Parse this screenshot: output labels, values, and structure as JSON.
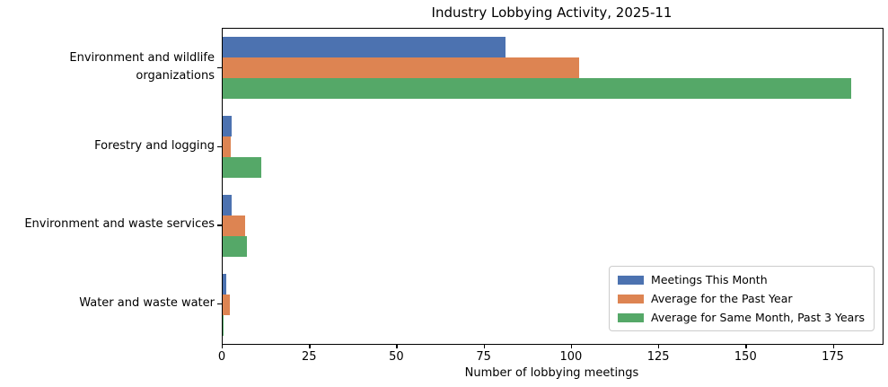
{
  "chart_data": {
    "type": "bar",
    "orientation": "horizontal",
    "title": "Industry Lobbying Activity, 2025-11",
    "xlabel": "Number of lobbying meetings",
    "categories": [
      "Environment and wildlife organizations",
      "Forestry and logging",
      "Environment and waste services",
      "Water and waste water"
    ],
    "category_label_lines": [
      [
        "Environment and wildlife",
        "organizations"
      ],
      [
        "Forestry and logging"
      ],
      [
        "Environment and waste services"
      ],
      [
        "Water and waste water"
      ]
    ],
    "series": [
      {
        "name": "Meetings This Month",
        "color": "#4C72B0",
        "values": [
          81,
          2.5,
          2.5,
          1
        ]
      },
      {
        "name": "Average for the Past Year",
        "color": "#DD8452",
        "values": [
          102,
          2.3,
          6.5,
          2
        ]
      },
      {
        "name": "Average for Same Month, Past 3 Years",
        "color": "#55A868",
        "values": [
          180,
          11,
          7,
          0.3
        ]
      }
    ],
    "xlim": [
      0,
      189
    ],
    "xticks": [
      0,
      25,
      50,
      75,
      100,
      125,
      150,
      175
    ],
    "grid": false,
    "legend_position": "lower right",
    "text_color": "#000000",
    "background_color": "#ffffff"
  }
}
